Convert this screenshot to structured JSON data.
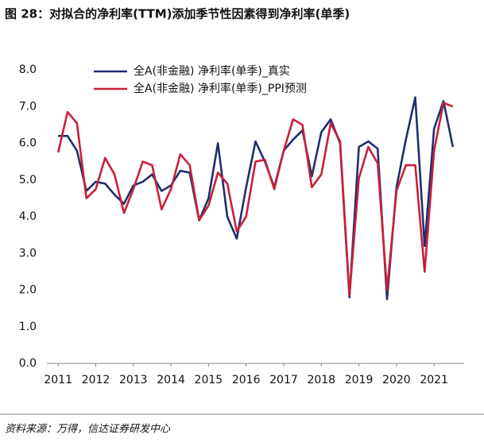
{
  "chart_data": {
    "type": "line",
    "title": "图 28：对拟合的净利率(TTM)添加季节性因素得到净利率(单季)",
    "source": "资料来源：万得，信达证券研发中心",
    "x": [
      2011,
      2011.25,
      2011.5,
      2011.75,
      2012,
      2012.25,
      2012.5,
      2012.75,
      2013,
      2013.25,
      2013.5,
      2013.75,
      2014,
      2014.25,
      2014.5,
      2014.75,
      2015,
      2015.25,
      2015.5,
      2015.75,
      2016,
      2016.25,
      2016.5,
      2016.75,
      2017,
      2017.25,
      2017.5,
      2017.75,
      2018,
      2018.25,
      2018.5,
      2018.75,
      2019,
      2019.25,
      2019.5,
      2019.75,
      2020,
      2020.25,
      2020.5,
      2020.75,
      2021,
      2021.25,
      2021.5
    ],
    "series": [
      {
        "name": "全A(非金融) 净利率(单季)_真实",
        "color": "#1f2f6e",
        "values": [
          6.2,
          6.2,
          5.8,
          4.7,
          4.95,
          4.9,
          4.6,
          4.35,
          4.85,
          4.95,
          5.15,
          4.7,
          4.85,
          5.25,
          5.2,
          3.9,
          4.5,
          6.0,
          4.0,
          3.4,
          4.8,
          6.05,
          5.5,
          4.8,
          5.8,
          6.1,
          6.35,
          5.1,
          6.3,
          6.65,
          6.0,
          1.8,
          5.9,
          6.05,
          5.85,
          1.75,
          4.8,
          6.1,
          7.25,
          3.2,
          6.4,
          7.15,
          5.9
        ]
      },
      {
        "name": "全A(非金融) 净利率(单季)_PPI预测",
        "color": "#c8203a",
        "values": [
          5.75,
          6.85,
          6.55,
          4.5,
          4.75,
          5.6,
          5.15,
          4.1,
          4.75,
          5.5,
          5.4,
          4.2,
          4.75,
          5.7,
          5.4,
          3.9,
          4.3,
          5.2,
          4.9,
          3.6,
          4.0,
          5.5,
          5.55,
          4.75,
          5.8,
          6.65,
          6.5,
          4.8,
          5.15,
          6.55,
          6.05,
          1.85,
          5.05,
          5.9,
          5.45,
          2.0,
          4.7,
          5.4,
          5.4,
          2.5,
          5.8,
          7.1,
          7.0
        ]
      }
    ],
    "xlim": [
      2010.7,
      2021.8
    ],
    "xticks": [
      2011,
      2012,
      2013,
      2014,
      2015,
      2016,
      2017,
      2018,
      2019,
      2020,
      2021
    ],
    "ylim": [
      0,
      8
    ],
    "yticks": [
      {
        "value": 0,
        "label": "0.0"
      },
      {
        "value": 1,
        "label": "1.0"
      },
      {
        "value": 2,
        "label": "2.0"
      },
      {
        "value": 3,
        "label": "3.0"
      },
      {
        "value": 4,
        "label": "4.0"
      },
      {
        "value": 5,
        "label": "5.0"
      },
      {
        "value": 6,
        "label": "6.0"
      },
      {
        "value": 7,
        "label": "7.0"
      },
      {
        "value": 8,
        "label": "8.0"
      }
    ],
    "legend": "upper left"
  }
}
